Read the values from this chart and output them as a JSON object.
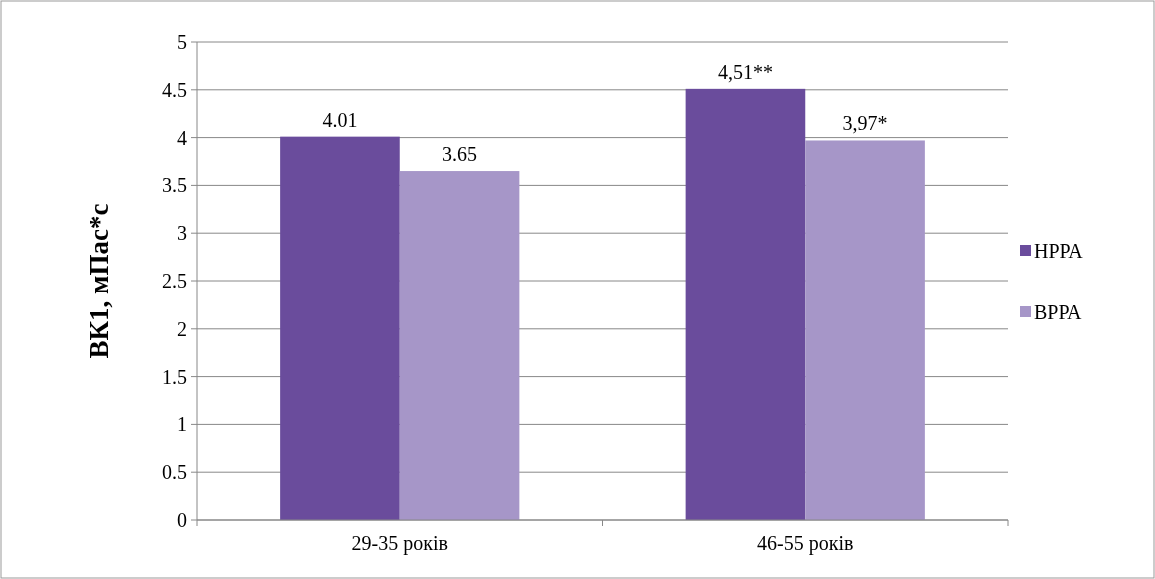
{
  "chart_data": {
    "type": "bar",
    "categories": [
      "29-35 років",
      "46-55 років"
    ],
    "ylabel": "ВК1, мПас*с",
    "series": [
      {
        "name": "НРРА",
        "color": "#6a4c9c",
        "values": [
          4.01,
          4.51
        ],
        "value_labels": [
          "4.01",
          "4,51**"
        ]
      },
      {
        "name": "ВРРА",
        "color": "#a696c8",
        "values": [
          3.65,
          3.97
        ],
        "value_labels": [
          "3.65",
          "3,97*"
        ]
      }
    ],
    "ylim": [
      0,
      5
    ],
    "yticks": [
      0,
      0.5,
      1,
      1.5,
      2,
      2.5,
      3,
      3.5,
      4,
      4.5,
      5
    ],
    "grid": "y",
    "legend": "right"
  }
}
